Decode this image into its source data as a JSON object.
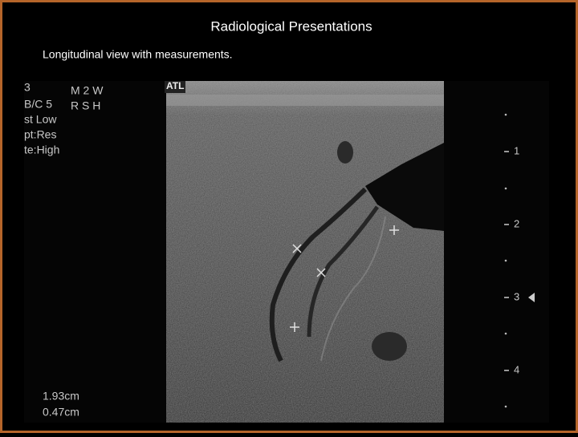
{
  "slide": {
    "title": "Radiological Presentations",
    "subtitle": "Longitudinal view with measurements."
  },
  "image": {
    "overlay_left": [
      "3",
      "B/C 5",
      "st Low",
      "pt:Res",
      "te:High"
    ],
    "overlay_mid": [
      "M 2 W",
      "R S H"
    ],
    "logo": "ATL",
    "measurements": [
      "1.93cm",
      "0.47cm"
    ],
    "depth_scale": [
      "1",
      "2",
      "3",
      "4"
    ]
  }
}
